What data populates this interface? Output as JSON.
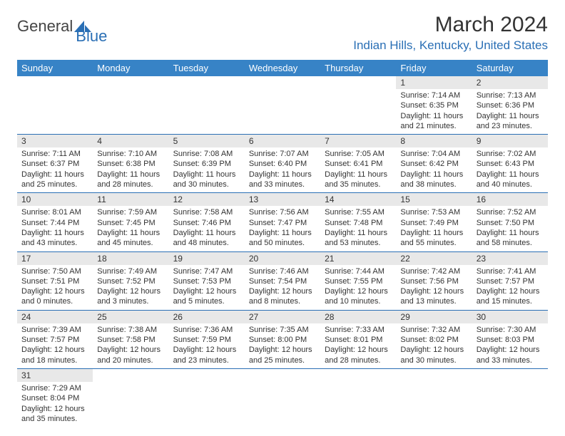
{
  "logo": {
    "text1": "General",
    "text2": "Blue"
  },
  "title": "March 2024",
  "location": "Indian Hills, Kentucky, United States",
  "columns": [
    "Sunday",
    "Monday",
    "Tuesday",
    "Wednesday",
    "Thursday",
    "Friday",
    "Saturday"
  ],
  "colors": {
    "header_bg": "#3783c6",
    "header_text": "#ffffff",
    "accent": "#2a6fb5",
    "daynum_bg": "#e8e8e8",
    "text": "#333333",
    "background": "#ffffff"
  },
  "typography": {
    "title_fontsize": 30,
    "location_fontsize": 17,
    "th_fontsize": 13,
    "daynum_fontsize": 12,
    "cell_fontsize": 11
  },
  "weeks": [
    [
      null,
      null,
      null,
      null,
      null,
      {
        "n": "1",
        "sunrise": "Sunrise: 7:14 AM",
        "sunset": "Sunset: 6:35 PM",
        "daylight": "Daylight: 11 hours and 21 minutes."
      },
      {
        "n": "2",
        "sunrise": "Sunrise: 7:13 AM",
        "sunset": "Sunset: 6:36 PM",
        "daylight": "Daylight: 11 hours and 23 minutes."
      }
    ],
    [
      {
        "n": "3",
        "sunrise": "Sunrise: 7:11 AM",
        "sunset": "Sunset: 6:37 PM",
        "daylight": "Daylight: 11 hours and 25 minutes."
      },
      {
        "n": "4",
        "sunrise": "Sunrise: 7:10 AM",
        "sunset": "Sunset: 6:38 PM",
        "daylight": "Daylight: 11 hours and 28 minutes."
      },
      {
        "n": "5",
        "sunrise": "Sunrise: 7:08 AM",
        "sunset": "Sunset: 6:39 PM",
        "daylight": "Daylight: 11 hours and 30 minutes."
      },
      {
        "n": "6",
        "sunrise": "Sunrise: 7:07 AM",
        "sunset": "Sunset: 6:40 PM",
        "daylight": "Daylight: 11 hours and 33 minutes."
      },
      {
        "n": "7",
        "sunrise": "Sunrise: 7:05 AM",
        "sunset": "Sunset: 6:41 PM",
        "daylight": "Daylight: 11 hours and 35 minutes."
      },
      {
        "n": "8",
        "sunrise": "Sunrise: 7:04 AM",
        "sunset": "Sunset: 6:42 PM",
        "daylight": "Daylight: 11 hours and 38 minutes."
      },
      {
        "n": "9",
        "sunrise": "Sunrise: 7:02 AM",
        "sunset": "Sunset: 6:43 PM",
        "daylight": "Daylight: 11 hours and 40 minutes."
      }
    ],
    [
      {
        "n": "10",
        "sunrise": "Sunrise: 8:01 AM",
        "sunset": "Sunset: 7:44 PM",
        "daylight": "Daylight: 11 hours and 43 minutes."
      },
      {
        "n": "11",
        "sunrise": "Sunrise: 7:59 AM",
        "sunset": "Sunset: 7:45 PM",
        "daylight": "Daylight: 11 hours and 45 minutes."
      },
      {
        "n": "12",
        "sunrise": "Sunrise: 7:58 AM",
        "sunset": "Sunset: 7:46 PM",
        "daylight": "Daylight: 11 hours and 48 minutes."
      },
      {
        "n": "13",
        "sunrise": "Sunrise: 7:56 AM",
        "sunset": "Sunset: 7:47 PM",
        "daylight": "Daylight: 11 hours and 50 minutes."
      },
      {
        "n": "14",
        "sunrise": "Sunrise: 7:55 AM",
        "sunset": "Sunset: 7:48 PM",
        "daylight": "Daylight: 11 hours and 53 minutes."
      },
      {
        "n": "15",
        "sunrise": "Sunrise: 7:53 AM",
        "sunset": "Sunset: 7:49 PM",
        "daylight": "Daylight: 11 hours and 55 minutes."
      },
      {
        "n": "16",
        "sunrise": "Sunrise: 7:52 AM",
        "sunset": "Sunset: 7:50 PM",
        "daylight": "Daylight: 11 hours and 58 minutes."
      }
    ],
    [
      {
        "n": "17",
        "sunrise": "Sunrise: 7:50 AM",
        "sunset": "Sunset: 7:51 PM",
        "daylight": "Daylight: 12 hours and 0 minutes."
      },
      {
        "n": "18",
        "sunrise": "Sunrise: 7:49 AM",
        "sunset": "Sunset: 7:52 PM",
        "daylight": "Daylight: 12 hours and 3 minutes."
      },
      {
        "n": "19",
        "sunrise": "Sunrise: 7:47 AM",
        "sunset": "Sunset: 7:53 PM",
        "daylight": "Daylight: 12 hours and 5 minutes."
      },
      {
        "n": "20",
        "sunrise": "Sunrise: 7:46 AM",
        "sunset": "Sunset: 7:54 PM",
        "daylight": "Daylight: 12 hours and 8 minutes."
      },
      {
        "n": "21",
        "sunrise": "Sunrise: 7:44 AM",
        "sunset": "Sunset: 7:55 PM",
        "daylight": "Daylight: 12 hours and 10 minutes."
      },
      {
        "n": "22",
        "sunrise": "Sunrise: 7:42 AM",
        "sunset": "Sunset: 7:56 PM",
        "daylight": "Daylight: 12 hours and 13 minutes."
      },
      {
        "n": "23",
        "sunrise": "Sunrise: 7:41 AM",
        "sunset": "Sunset: 7:57 PM",
        "daylight": "Daylight: 12 hours and 15 minutes."
      }
    ],
    [
      {
        "n": "24",
        "sunrise": "Sunrise: 7:39 AM",
        "sunset": "Sunset: 7:57 PM",
        "daylight": "Daylight: 12 hours and 18 minutes."
      },
      {
        "n": "25",
        "sunrise": "Sunrise: 7:38 AM",
        "sunset": "Sunset: 7:58 PM",
        "daylight": "Daylight: 12 hours and 20 minutes."
      },
      {
        "n": "26",
        "sunrise": "Sunrise: 7:36 AM",
        "sunset": "Sunset: 7:59 PM",
        "daylight": "Daylight: 12 hours and 23 minutes."
      },
      {
        "n": "27",
        "sunrise": "Sunrise: 7:35 AM",
        "sunset": "Sunset: 8:00 PM",
        "daylight": "Daylight: 12 hours and 25 minutes."
      },
      {
        "n": "28",
        "sunrise": "Sunrise: 7:33 AM",
        "sunset": "Sunset: 8:01 PM",
        "daylight": "Daylight: 12 hours and 28 minutes."
      },
      {
        "n": "29",
        "sunrise": "Sunrise: 7:32 AM",
        "sunset": "Sunset: 8:02 PM",
        "daylight": "Daylight: 12 hours and 30 minutes."
      },
      {
        "n": "30",
        "sunrise": "Sunrise: 7:30 AM",
        "sunset": "Sunset: 8:03 PM",
        "daylight": "Daylight: 12 hours and 33 minutes."
      }
    ],
    [
      {
        "n": "31",
        "sunrise": "Sunrise: 7:29 AM",
        "sunset": "Sunset: 8:04 PM",
        "daylight": "Daylight: 12 hours and 35 minutes."
      },
      null,
      null,
      null,
      null,
      null,
      null
    ]
  ]
}
